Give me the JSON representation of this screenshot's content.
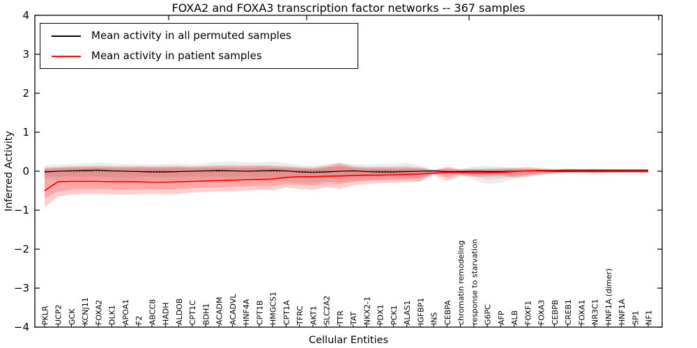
{
  "chart_data": {
    "type": "line",
    "title": "FOXA2 and FOXA3 transcription factor networks -- 367 samples",
    "xlabel": "Cellular Entities",
    "ylabel": "Inferred Activity",
    "ylim": [
      -4,
      4
    ],
    "yticks": [
      "4",
      "3",
      "2",
      "1",
      "0",
      "−1",
      "−2",
      "−3",
      "−4"
    ],
    "grid": false,
    "legend_position": "upper left",
    "zero_line": {
      "y": 0,
      "style": "dotted",
      "color": "#000000"
    },
    "categories": [
      "PKLR",
      "UCP2",
      "GCK",
      "KCNJ11",
      "FOXA2",
      "DLK1",
      "APOA1",
      "F2",
      "ABCC8",
      "HADH",
      "ALDOB",
      "CPT1C",
      "BDH1",
      "ACADM",
      "ACADVL",
      "HNF4A",
      "CPT1B",
      "HMGCS1",
      "CPT1A",
      "TFRC",
      "AKT1",
      "SLC2A2",
      "TTR",
      "TAT",
      "NKX2-1",
      "PDX1",
      "PCK1",
      "ALAS1",
      "IGFBP1",
      "INS",
      "CEBPA",
      "chromatin remodeling",
      "response to starvation",
      "G6PC",
      "AFP",
      "ALB",
      "FOXF1",
      "FOXA3",
      "CEBPB",
      "CREB1",
      "FOXA1",
      "NR3C1",
      "HNF1A (dimer)",
      "HNF1A",
      "SP1",
      "NF1"
    ],
    "series": [
      {
        "id": "permuted",
        "name": "Mean activity in all permuted samples",
        "color": "#000000",
        "band_color": "#888888",
        "band_opacity": 0.16,
        "mean": [
          -0.02,
          0.0,
          0.01,
          0.02,
          0.03,
          0.01,
          0.0,
          -0.01,
          -0.02,
          -0.02,
          -0.01,
          0.0,
          0.01,
          0.02,
          0.01,
          0.0,
          0.01,
          0.02,
          0.01,
          -0.02,
          -0.03,
          -0.02,
          0.0,
          0.01,
          -0.01,
          -0.02,
          -0.02,
          -0.01,
          0.0,
          0.01,
          -0.01,
          -0.01,
          0.0,
          -0.01,
          -0.01,
          0.0,
          0.01,
          0.01,
          0.0,
          0.0,
          0.0,
          0.0,
          0.0,
          0.0,
          0.0,
          0.0
        ],
        "band_inner": {
          "upper": [
            0.1,
            0.11,
            0.12,
            0.13,
            0.14,
            0.13,
            0.12,
            0.12,
            0.11,
            0.12,
            0.12,
            0.12,
            0.13,
            0.15,
            0.16,
            0.14,
            0.14,
            0.16,
            0.13,
            0.1,
            0.1,
            0.12,
            0.13,
            0.12,
            0.11,
            0.12,
            0.12,
            0.14,
            0.1,
            0.03,
            0.03,
            0.04,
            0.08,
            0.08,
            0.08,
            0.05,
            0.04,
            0.03,
            0.03,
            0.03,
            0.03,
            0.03,
            0.03,
            0.03,
            0.03,
            0.03
          ],
          "lower": [
            -0.13,
            -0.14,
            -0.14,
            -0.15,
            -0.14,
            -0.15,
            -0.16,
            -0.15,
            -0.14,
            -0.15,
            -0.16,
            -0.14,
            -0.14,
            -0.15,
            -0.16,
            -0.14,
            -0.15,
            -0.16,
            -0.17,
            -0.2,
            -0.18,
            -0.17,
            -0.18,
            -0.17,
            -0.16,
            -0.15,
            -0.14,
            -0.16,
            -0.18,
            -0.03,
            -0.04,
            -0.05,
            -0.14,
            -0.21,
            -0.19,
            -0.12,
            -0.08,
            -0.05,
            -0.03,
            -0.03,
            -0.03,
            -0.03,
            -0.03,
            -0.03,
            -0.03,
            -0.03
          ]
        },
        "band_outer": {
          "upper": [
            0.15,
            0.17,
            0.18,
            0.2,
            0.22,
            0.2,
            0.18,
            0.18,
            0.17,
            0.18,
            0.19,
            0.18,
            0.2,
            0.24,
            0.25,
            0.22,
            0.22,
            0.25,
            0.2,
            0.16,
            0.15,
            0.18,
            0.2,
            0.18,
            0.17,
            0.19,
            0.18,
            0.21,
            0.15,
            0.04,
            0.05,
            0.06,
            0.12,
            0.13,
            0.12,
            0.08,
            0.06,
            0.05,
            0.04,
            0.04,
            0.04,
            0.04,
            0.04,
            0.04,
            0.04,
            0.04
          ],
          "lower": [
            -0.2,
            -0.22,
            -0.22,
            -0.23,
            -0.22,
            -0.23,
            -0.24,
            -0.23,
            -0.22,
            -0.23,
            -0.24,
            -0.22,
            -0.22,
            -0.23,
            -0.24,
            -0.22,
            -0.23,
            -0.25,
            -0.26,
            -0.3,
            -0.28,
            -0.26,
            -0.28,
            -0.26,
            -0.24,
            -0.23,
            -0.21,
            -0.24,
            -0.27,
            -0.05,
            -0.06,
            -0.08,
            -0.22,
            -0.33,
            -0.3,
            -0.18,
            -0.12,
            -0.07,
            -0.05,
            -0.04,
            -0.04,
            -0.04,
            -0.04,
            -0.04,
            -0.04,
            -0.04
          ]
        }
      },
      {
        "id": "patient",
        "name": "Mean activity in patient samples",
        "color": "#ff0000",
        "band_color": "#ff0000",
        "band_opacity": 0.19,
        "mean": [
          -0.5,
          -0.27,
          -0.26,
          -0.26,
          -0.26,
          -0.27,
          -0.27,
          -0.27,
          -0.28,
          -0.28,
          -0.27,
          -0.26,
          -0.25,
          -0.24,
          -0.23,
          -0.22,
          -0.21,
          -0.2,
          -0.16,
          -0.14,
          -0.14,
          -0.13,
          -0.12,
          -0.11,
          -0.1,
          -0.1,
          -0.09,
          -0.08,
          -0.07,
          -0.05,
          -0.03,
          -0.03,
          -0.04,
          -0.04,
          -0.03,
          -0.01,
          0.01,
          0.02,
          0.02,
          0.03,
          0.03,
          0.03,
          0.03,
          0.03,
          0.03,
          0.03
        ],
        "band_inner": {
          "upper": [
            0.05,
            0.07,
            0.08,
            0.08,
            0.09,
            0.08,
            0.08,
            0.09,
            0.08,
            0.08,
            0.09,
            0.08,
            0.09,
            0.09,
            0.09,
            0.09,
            0.1,
            0.09,
            0.08,
            0.06,
            0.05,
            0.09,
            0.15,
            0.08,
            0.06,
            0.06,
            0.06,
            0.06,
            0.06,
            0.02,
            0.08,
            0.03,
            0.03,
            0.04,
            0.04,
            0.06,
            0.07,
            0.05,
            0.04,
            0.04,
            0.04,
            0.04,
            0.03,
            0.03,
            0.03,
            0.03
          ],
          "lower": [
            -0.7,
            -0.52,
            -0.47,
            -0.46,
            -0.46,
            -0.47,
            -0.47,
            -0.46,
            -0.46,
            -0.47,
            -0.46,
            -0.43,
            -0.42,
            -0.41,
            -0.4,
            -0.39,
            -0.37,
            -0.38,
            -0.32,
            -0.34,
            -0.37,
            -0.3,
            -0.33,
            -0.27,
            -0.24,
            -0.23,
            -0.22,
            -0.2,
            -0.18,
            -0.07,
            -0.16,
            -0.08,
            -0.1,
            -0.1,
            -0.08,
            -0.12,
            -0.1,
            -0.06,
            -0.04,
            -0.03,
            -0.03,
            -0.04,
            -0.03,
            -0.03,
            -0.03,
            -0.03
          ]
        },
        "band_outer": {
          "upper": [
            0.08,
            0.1,
            0.12,
            0.12,
            0.13,
            0.12,
            0.12,
            0.13,
            0.12,
            0.12,
            0.13,
            0.12,
            0.13,
            0.14,
            0.13,
            0.14,
            0.15,
            0.13,
            0.12,
            0.1,
            0.08,
            0.14,
            0.22,
            0.12,
            0.1,
            0.1,
            0.1,
            0.1,
            0.09,
            0.03,
            0.12,
            0.05,
            0.05,
            0.06,
            0.07,
            0.09,
            0.11,
            0.08,
            0.06,
            0.06,
            0.06,
            0.06,
            0.05,
            0.05,
            0.05,
            0.05
          ],
          "lower": [
            -0.93,
            -0.65,
            -0.6,
            -0.58,
            -0.58,
            -0.59,
            -0.6,
            -0.59,
            -0.58,
            -0.59,
            -0.58,
            -0.55,
            -0.53,
            -0.52,
            -0.52,
            -0.5,
            -0.48,
            -0.49,
            -0.42,
            -0.45,
            -0.48,
            -0.41,
            -0.45,
            -0.36,
            -0.33,
            -0.31,
            -0.3,
            -0.28,
            -0.26,
            -0.1,
            -0.24,
            -0.12,
            -0.14,
            -0.14,
            -0.12,
            -0.17,
            -0.15,
            -0.09,
            -0.06,
            -0.05,
            -0.05,
            -0.06,
            -0.05,
            -0.04,
            -0.04,
            -0.04
          ]
        }
      }
    ]
  }
}
